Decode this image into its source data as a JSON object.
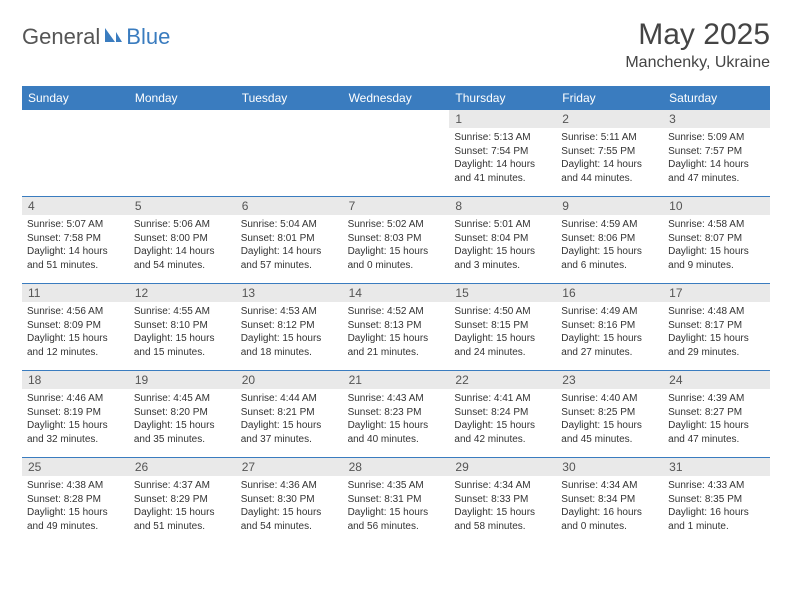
{
  "logo": {
    "general": "General",
    "blue": "Blue"
  },
  "title": "May 2025",
  "location": "Manchenky, Ukraine",
  "colors": {
    "header_bg": "#3a7cbf",
    "header_text": "#ffffff",
    "daynum_bg": "#e9e9e9",
    "border": "#3a7cbf",
    "body_text": "#333333"
  },
  "day_headers": [
    "Sunday",
    "Monday",
    "Tuesday",
    "Wednesday",
    "Thursday",
    "Friday",
    "Saturday"
  ],
  "weeks": [
    [
      {
        "day": "",
        "sunrise": "",
        "sunset": "",
        "daylight": ""
      },
      {
        "day": "",
        "sunrise": "",
        "sunset": "",
        "daylight": ""
      },
      {
        "day": "",
        "sunrise": "",
        "sunset": "",
        "daylight": ""
      },
      {
        "day": "",
        "sunrise": "",
        "sunset": "",
        "daylight": ""
      },
      {
        "day": "1",
        "sunrise": "Sunrise: 5:13 AM",
        "sunset": "Sunset: 7:54 PM",
        "daylight": "Daylight: 14 hours and 41 minutes."
      },
      {
        "day": "2",
        "sunrise": "Sunrise: 5:11 AM",
        "sunset": "Sunset: 7:55 PM",
        "daylight": "Daylight: 14 hours and 44 minutes."
      },
      {
        "day": "3",
        "sunrise": "Sunrise: 5:09 AM",
        "sunset": "Sunset: 7:57 PM",
        "daylight": "Daylight: 14 hours and 47 minutes."
      }
    ],
    [
      {
        "day": "4",
        "sunrise": "Sunrise: 5:07 AM",
        "sunset": "Sunset: 7:58 PM",
        "daylight": "Daylight: 14 hours and 51 minutes."
      },
      {
        "day": "5",
        "sunrise": "Sunrise: 5:06 AM",
        "sunset": "Sunset: 8:00 PM",
        "daylight": "Daylight: 14 hours and 54 minutes."
      },
      {
        "day": "6",
        "sunrise": "Sunrise: 5:04 AM",
        "sunset": "Sunset: 8:01 PM",
        "daylight": "Daylight: 14 hours and 57 minutes."
      },
      {
        "day": "7",
        "sunrise": "Sunrise: 5:02 AM",
        "sunset": "Sunset: 8:03 PM",
        "daylight": "Daylight: 15 hours and 0 minutes."
      },
      {
        "day": "8",
        "sunrise": "Sunrise: 5:01 AM",
        "sunset": "Sunset: 8:04 PM",
        "daylight": "Daylight: 15 hours and 3 minutes."
      },
      {
        "day": "9",
        "sunrise": "Sunrise: 4:59 AM",
        "sunset": "Sunset: 8:06 PM",
        "daylight": "Daylight: 15 hours and 6 minutes."
      },
      {
        "day": "10",
        "sunrise": "Sunrise: 4:58 AM",
        "sunset": "Sunset: 8:07 PM",
        "daylight": "Daylight: 15 hours and 9 minutes."
      }
    ],
    [
      {
        "day": "11",
        "sunrise": "Sunrise: 4:56 AM",
        "sunset": "Sunset: 8:09 PM",
        "daylight": "Daylight: 15 hours and 12 minutes."
      },
      {
        "day": "12",
        "sunrise": "Sunrise: 4:55 AM",
        "sunset": "Sunset: 8:10 PM",
        "daylight": "Daylight: 15 hours and 15 minutes."
      },
      {
        "day": "13",
        "sunrise": "Sunrise: 4:53 AM",
        "sunset": "Sunset: 8:12 PM",
        "daylight": "Daylight: 15 hours and 18 minutes."
      },
      {
        "day": "14",
        "sunrise": "Sunrise: 4:52 AM",
        "sunset": "Sunset: 8:13 PM",
        "daylight": "Daylight: 15 hours and 21 minutes."
      },
      {
        "day": "15",
        "sunrise": "Sunrise: 4:50 AM",
        "sunset": "Sunset: 8:15 PM",
        "daylight": "Daylight: 15 hours and 24 minutes."
      },
      {
        "day": "16",
        "sunrise": "Sunrise: 4:49 AM",
        "sunset": "Sunset: 8:16 PM",
        "daylight": "Daylight: 15 hours and 27 minutes."
      },
      {
        "day": "17",
        "sunrise": "Sunrise: 4:48 AM",
        "sunset": "Sunset: 8:17 PM",
        "daylight": "Daylight: 15 hours and 29 minutes."
      }
    ],
    [
      {
        "day": "18",
        "sunrise": "Sunrise: 4:46 AM",
        "sunset": "Sunset: 8:19 PM",
        "daylight": "Daylight: 15 hours and 32 minutes."
      },
      {
        "day": "19",
        "sunrise": "Sunrise: 4:45 AM",
        "sunset": "Sunset: 8:20 PM",
        "daylight": "Daylight: 15 hours and 35 minutes."
      },
      {
        "day": "20",
        "sunrise": "Sunrise: 4:44 AM",
        "sunset": "Sunset: 8:21 PM",
        "daylight": "Daylight: 15 hours and 37 minutes."
      },
      {
        "day": "21",
        "sunrise": "Sunrise: 4:43 AM",
        "sunset": "Sunset: 8:23 PM",
        "daylight": "Daylight: 15 hours and 40 minutes."
      },
      {
        "day": "22",
        "sunrise": "Sunrise: 4:41 AM",
        "sunset": "Sunset: 8:24 PM",
        "daylight": "Daylight: 15 hours and 42 minutes."
      },
      {
        "day": "23",
        "sunrise": "Sunrise: 4:40 AM",
        "sunset": "Sunset: 8:25 PM",
        "daylight": "Daylight: 15 hours and 45 minutes."
      },
      {
        "day": "24",
        "sunrise": "Sunrise: 4:39 AM",
        "sunset": "Sunset: 8:27 PM",
        "daylight": "Daylight: 15 hours and 47 minutes."
      }
    ],
    [
      {
        "day": "25",
        "sunrise": "Sunrise: 4:38 AM",
        "sunset": "Sunset: 8:28 PM",
        "daylight": "Daylight: 15 hours and 49 minutes."
      },
      {
        "day": "26",
        "sunrise": "Sunrise: 4:37 AM",
        "sunset": "Sunset: 8:29 PM",
        "daylight": "Daylight: 15 hours and 51 minutes."
      },
      {
        "day": "27",
        "sunrise": "Sunrise: 4:36 AM",
        "sunset": "Sunset: 8:30 PM",
        "daylight": "Daylight: 15 hours and 54 minutes."
      },
      {
        "day": "28",
        "sunrise": "Sunrise: 4:35 AM",
        "sunset": "Sunset: 8:31 PM",
        "daylight": "Daylight: 15 hours and 56 minutes."
      },
      {
        "day": "29",
        "sunrise": "Sunrise: 4:34 AM",
        "sunset": "Sunset: 8:33 PM",
        "daylight": "Daylight: 15 hours and 58 minutes."
      },
      {
        "day": "30",
        "sunrise": "Sunrise: 4:34 AM",
        "sunset": "Sunset: 8:34 PM",
        "daylight": "Daylight: 16 hours and 0 minutes."
      },
      {
        "day": "31",
        "sunrise": "Sunrise: 4:33 AM",
        "sunset": "Sunset: 8:35 PM",
        "daylight": "Daylight: 16 hours and 1 minute."
      }
    ]
  ]
}
